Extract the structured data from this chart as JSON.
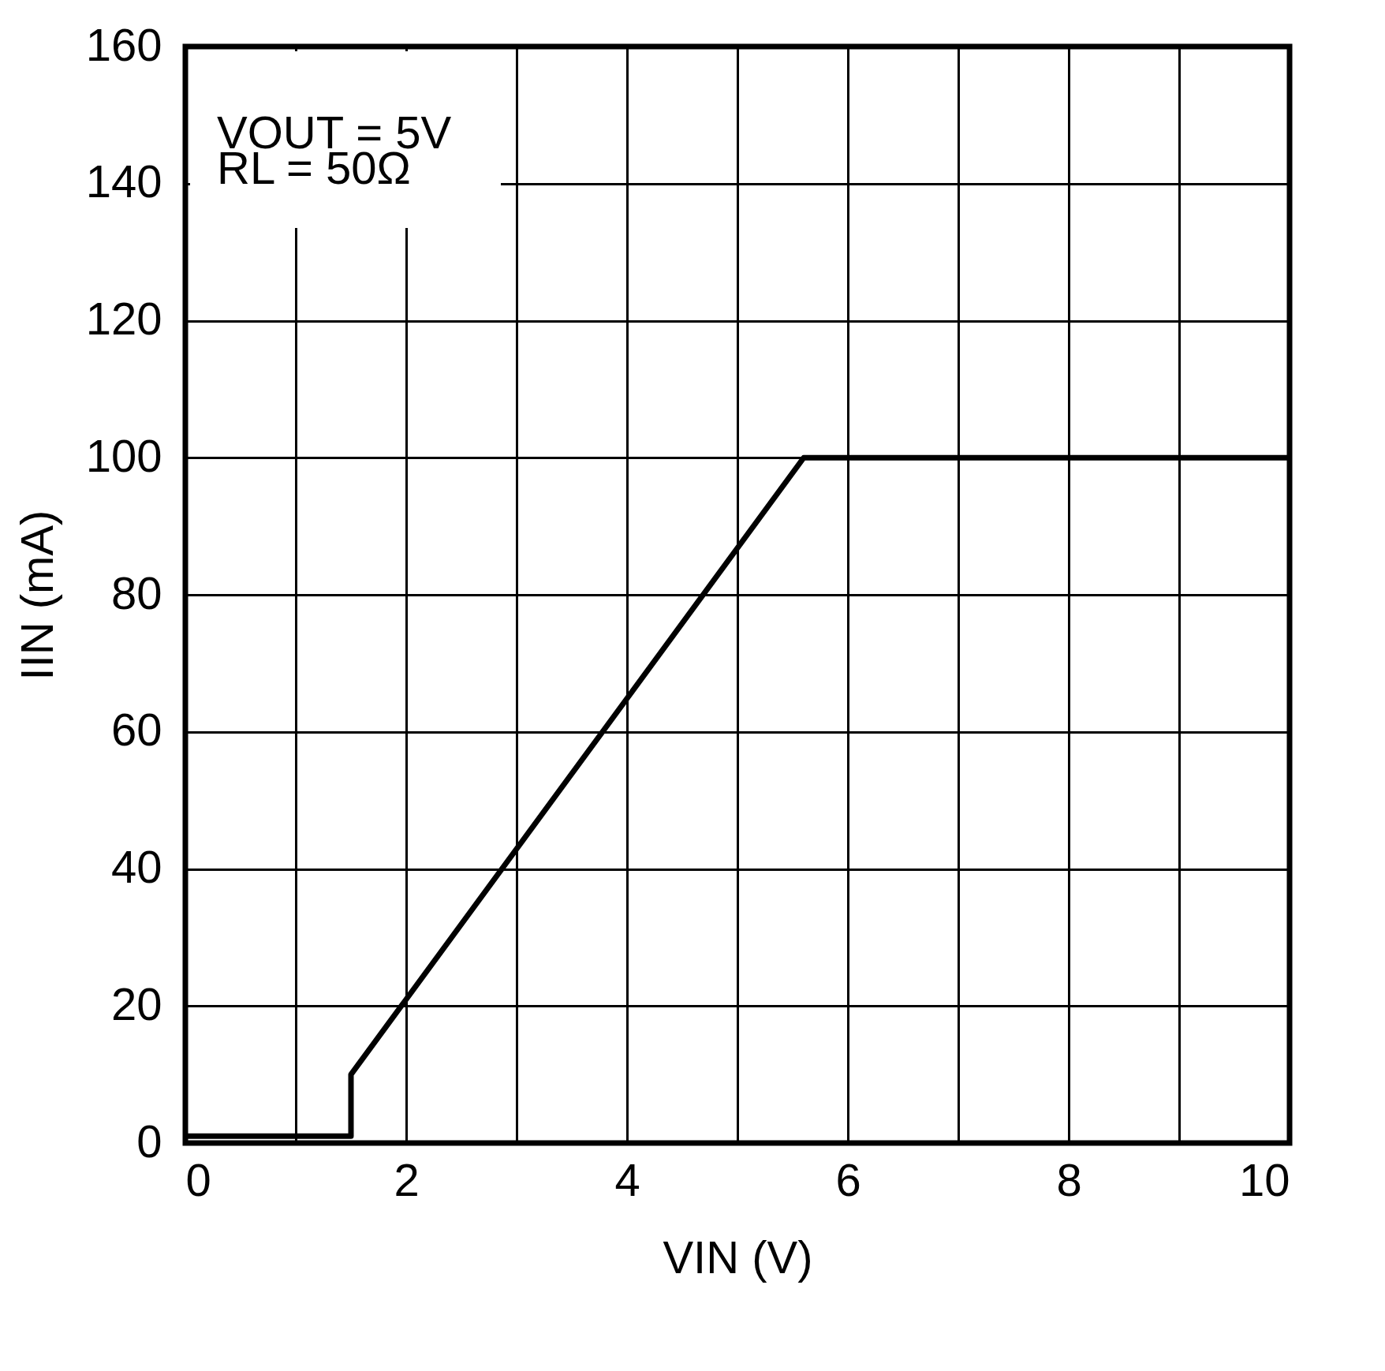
{
  "chart_data": {
    "type": "line",
    "xlabel": "VIN (V)",
    "ylabel": "IIN (mA)",
    "annotations": [
      "VOUT = 5V",
      "RL = 50Ω"
    ],
    "series": [
      {
        "color": "#000000",
        "x": [
          0,
          1.5,
          1.5,
          5.6,
          10
        ],
        "values": [
          1,
          1,
          10,
          100,
          100
        ]
      }
    ],
    "xlim": [
      0,
      10
    ],
    "ylim": [
      0,
      160
    ],
    "xticks": [
      0,
      {
        "value": 1,
        "label": null
      },
      2,
      {
        "value": 3,
        "label": null
      },
      4,
      {
        "value": 5,
        "label": null
      },
      6,
      {
        "value": 7,
        "label": null
      },
      8,
      {
        "value": 9,
        "label": null
      },
      10
    ],
    "yticks": [
      0,
      20,
      40,
      60,
      80,
      100,
      120,
      140,
      160
    ],
    "grid": true,
    "marker": "none",
    "line_style": "solid"
  }
}
